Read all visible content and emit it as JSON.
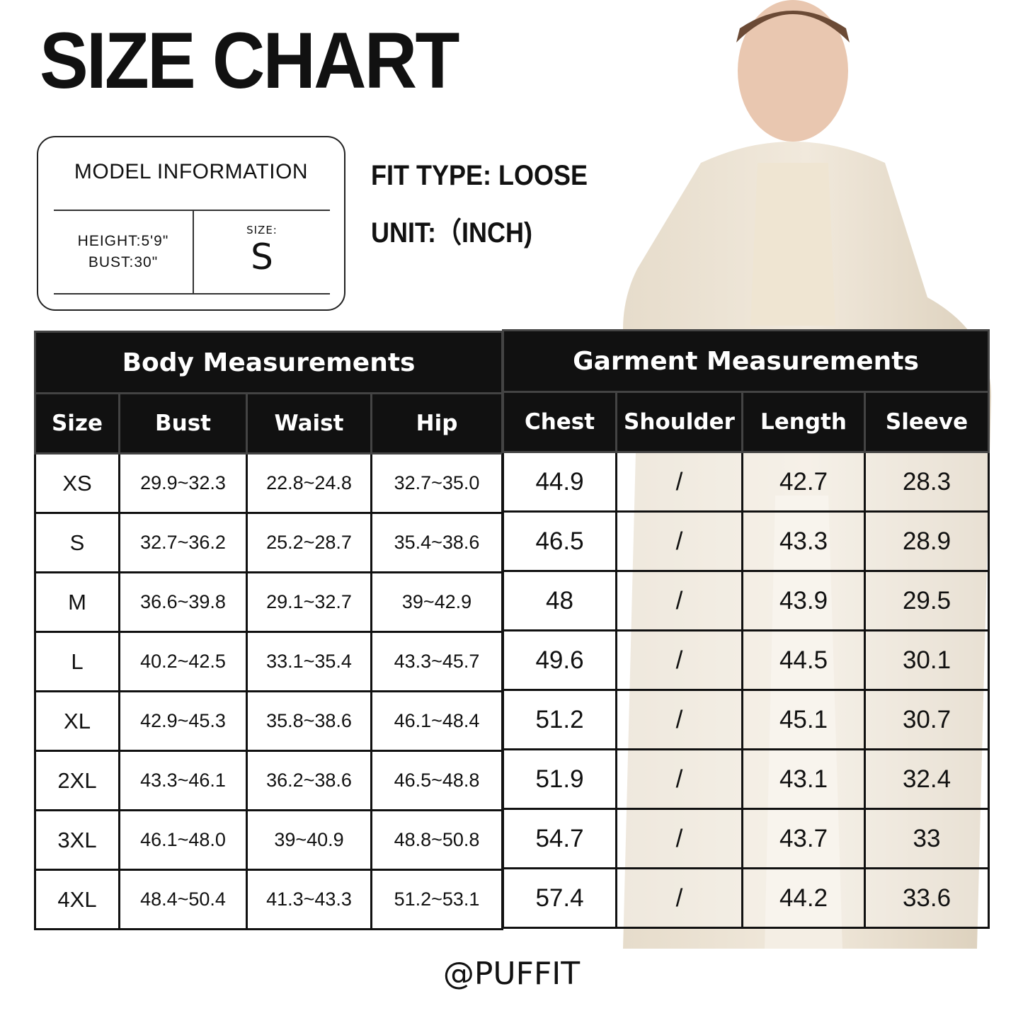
{
  "title": "SIZE CHART",
  "model_info": {
    "heading": "MODEL INFORMATION",
    "height": "HEIGHT:5'9\"",
    "bust": "BUST:30\"",
    "size_label": "SIZE:",
    "size_value": "S"
  },
  "fit_type": "FIT TYPE: LOOSE",
  "unit": "UNIT:（INCH)",
  "body_table": {
    "heading": "Body Measurements",
    "columns": [
      "Size",
      "Bust",
      "Waist",
      "Hip"
    ],
    "rows": [
      [
        "XS",
        "29.9~32.3",
        "22.8~24.8",
        "32.7~35.0"
      ],
      [
        "S",
        "32.7~36.2",
        "25.2~28.7",
        "35.4~38.6"
      ],
      [
        "M",
        "36.6~39.8",
        "29.1~32.7",
        "39~42.9"
      ],
      [
        "L",
        "40.2~42.5",
        "33.1~35.4",
        "43.3~45.7"
      ],
      [
        "XL",
        "42.9~45.3",
        "35.8~38.6",
        "46.1~48.4"
      ],
      [
        "2XL",
        "43.3~46.1",
        "36.2~38.6",
        "46.5~48.8"
      ],
      [
        "3XL",
        "46.1~48.0",
        "39~40.9",
        "48.8~50.8"
      ],
      [
        "4XL",
        "48.4~50.4",
        "41.3~43.3",
        "51.2~53.1"
      ]
    ]
  },
  "garment_table": {
    "heading": "Garment Measurements",
    "columns": [
      "Chest",
      "Shoulder",
      "Length",
      "Sleeve"
    ],
    "rows": [
      [
        "44.9",
        "/",
        "42.7",
        "28.3"
      ],
      [
        "46.5",
        "/",
        "43.3",
        "28.9"
      ],
      [
        "48",
        "/",
        "43.9",
        "29.5"
      ],
      [
        "49.6",
        "/",
        "44.5",
        "30.1"
      ],
      [
        "51.2",
        "/",
        "45.1",
        "30.7"
      ],
      [
        "51.9",
        "/",
        "43.1",
        "32.4"
      ],
      [
        "54.7",
        "/",
        "43.7",
        "33"
      ],
      [
        "57.4",
        "/",
        "44.2",
        "33.6"
      ]
    ]
  },
  "footer": "@PUFFIT",
  "colors": {
    "header_bg": "#111111",
    "coat": "#ece3d4"
  }
}
